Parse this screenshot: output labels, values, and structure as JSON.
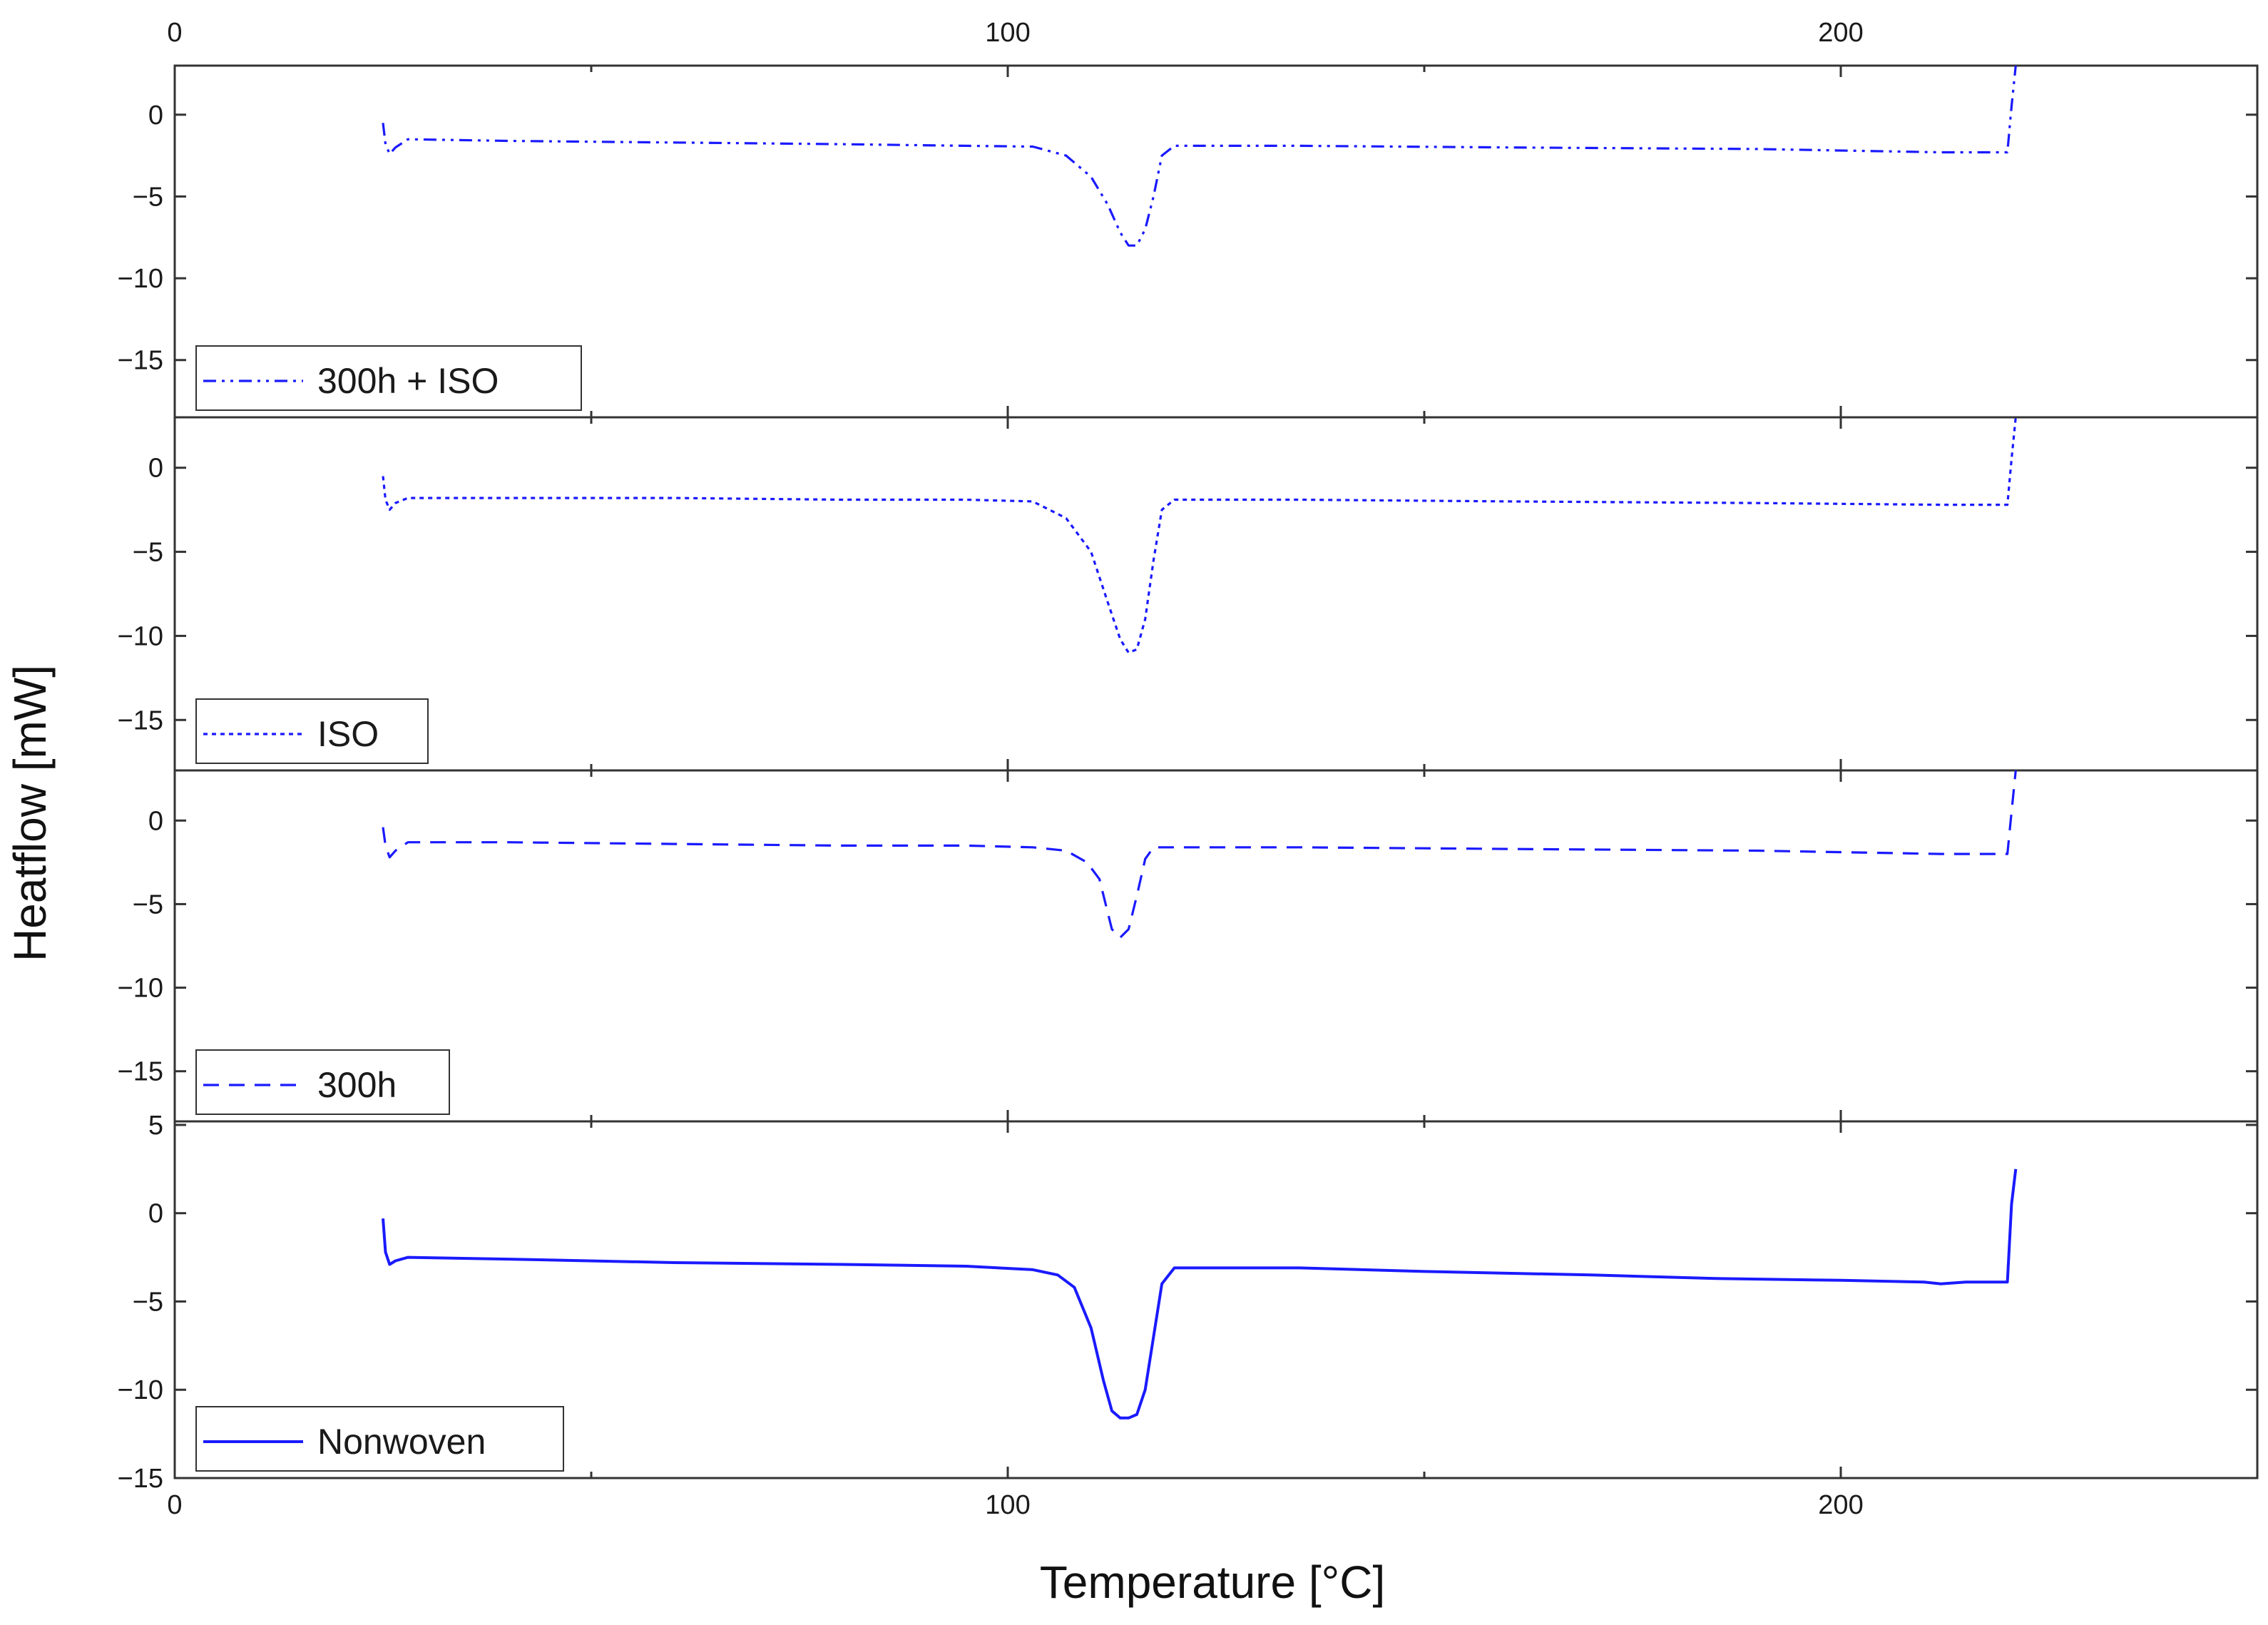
{
  "chart_data": {
    "type": "line",
    "xlabel": "Temperature [°C]",
    "ylabel": "Heatflow [mW]",
    "xlim": [
      0,
      250
    ],
    "x_ticks": [
      0,
      100,
      200
    ],
    "x_tick_labels_top": [
      "0",
      "100",
      "200"
    ],
    "x_tick_labels_bottom": [
      "0",
      "100",
      "200"
    ],
    "line_color": "#1a1aff",
    "panels": [
      {
        "name": "300h + ISO",
        "dash": "dash-dot-dot",
        "ylim": [
          -18.5,
          3
        ],
        "y_ticks": [
          0,
          -5,
          -10,
          -15
        ],
        "y_tick_labels": [
          "0",
          "-5",
          "-10",
          "-15"
        ],
        "x": [
          25,
          25.3,
          25.8,
          26.5,
          28,
          40,
          60,
          80,
          95,
          103,
          107,
          110,
          112,
          113.5,
          114.5,
          115.5,
          116.5,
          117.5,
          118.5,
          120,
          135,
          160,
          190,
          212,
          220,
          220.5,
          221
        ],
        "y": [
          -0.5,
          -1.8,
          -2.4,
          -2.0,
          -1.5,
          -1.6,
          -1.7,
          -1.8,
          -1.9,
          -1.95,
          -2.5,
          -3.8,
          -5.5,
          -7.2,
          -8.0,
          -8.0,
          -7.0,
          -5.0,
          -2.5,
          -1.9,
          -1.9,
          -2.0,
          -2.1,
          -2.3,
          -2.3,
          0.5,
          3.0
        ],
        "legend_label": "300h + ISO"
      },
      {
        "name": "ISO",
        "dash": "dotted",
        "ylim": [
          -18,
          3
        ],
        "y_ticks": [
          0,
          -5,
          -10,
          -15
        ],
        "y_tick_labels": [
          "0",
          "-5",
          "-10",
          "-15"
        ],
        "x": [
          25,
          25.3,
          25.8,
          26.5,
          28,
          40,
          60,
          80,
          95,
          103,
          107,
          110,
          112,
          113.5,
          114.5,
          115.5,
          116.5,
          117.5,
          118.5,
          120,
          135,
          160,
          190,
          212,
          220,
          220.5,
          221
        ],
        "y": [
          -0.5,
          -1.9,
          -2.5,
          -2.1,
          -1.8,
          -1.8,
          -1.8,
          -1.9,
          -1.9,
          -2.0,
          -3.0,
          -5.0,
          -8.0,
          -10.2,
          -11.0,
          -10.8,
          -9.0,
          -5.5,
          -2.5,
          -1.9,
          -1.9,
          -2.0,
          -2.1,
          -2.2,
          -2.2,
          0.5,
          3.0
        ],
        "legend_label": "ISO"
      },
      {
        "name": "300h",
        "dash": "dashed",
        "ylim": [
          -18,
          3
        ],
        "y_ticks": [
          0,
          -5,
          -10,
          -15
        ],
        "y_tick_labels": [
          "0",
          "-5",
          "-10",
          "-15"
        ],
        "x": [
          25,
          25.3,
          25.8,
          26.5,
          28,
          40,
          60,
          80,
          95,
          103,
          107,
          109.5,
          111,
          112.5,
          113.5,
          114.5,
          115.5,
          116.5,
          117.5,
          120,
          135,
          160,
          190,
          212,
          220,
          220.5,
          221
        ],
        "y": [
          -0.4,
          -1.5,
          -2.2,
          -1.8,
          -1.3,
          -1.3,
          -1.4,
          -1.5,
          -1.5,
          -1.6,
          -1.8,
          -2.5,
          -3.5,
          -6.5,
          -7.0,
          -6.5,
          -4.5,
          -2.3,
          -1.6,
          -1.6,
          -1.6,
          -1.7,
          -1.8,
          -2.0,
          -2.0,
          0.5,
          3.0
        ],
        "legend_label": "300h"
      },
      {
        "name": "Nonwoven",
        "dash": "solid",
        "ylim": [
          -15,
          5.2
        ],
        "y_ticks": [
          5,
          0,
          -5,
          -10,
          -15
        ],
        "y_tick_labels": [
          "5",
          "0",
          "-5",
          "-10",
          "-15"
        ],
        "x": [
          25,
          25.3,
          25.8,
          26.5,
          28,
          40,
          60,
          80,
          95,
          103,
          106,
          108,
          110,
          111.5,
          112.5,
          113.5,
          114.5,
          115.5,
          116.5,
          117.5,
          118.5,
          120,
          135,
          150,
          170,
          185,
          200,
          210,
          212,
          215,
          220,
          220.5,
          221
        ],
        "y": [
          -0.3,
          -2.2,
          -2.9,
          -2.7,
          -2.5,
          -2.6,
          -2.8,
          -2.9,
          -3.0,
          -3.2,
          -3.5,
          -4.2,
          -6.5,
          -9.5,
          -11.2,
          -11.6,
          -11.6,
          -11.4,
          -10.0,
          -7.0,
          -4.0,
          -3.1,
          -3.1,
          -3.3,
          -3.5,
          -3.7,
          -3.8,
          -3.9,
          -4.0,
          -3.9,
          -3.9,
          0.5,
          2.5
        ],
        "legend_label": "Nonwoven"
      }
    ]
  }
}
